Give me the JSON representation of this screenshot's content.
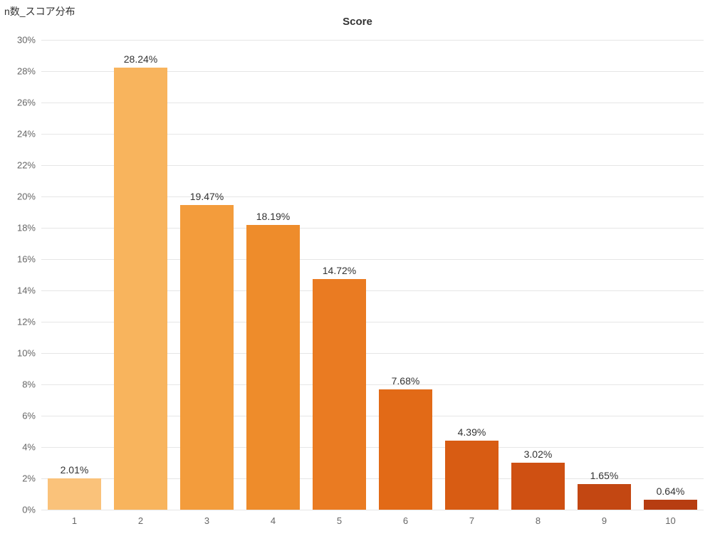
{
  "chart": {
    "type": "bar",
    "top_left_title": "n数_スコア分布",
    "center_title": "Score",
    "background_color": "#ffffff",
    "grid_color": "#e6e6e6",
    "axis_label_color": "#666666",
    "bar_label_color": "#333333",
    "title_fontsize": 14,
    "label_fontsize": 13,
    "barlabel_fontsize": 14,
    "ylim_max": 30,
    "ylim_min": 0,
    "ytick_step": 2,
    "bar_width_ratio": 0.8,
    "categories": [
      "1",
      "2",
      "3",
      "4",
      "5",
      "6",
      "7",
      "8",
      "9",
      "10"
    ],
    "values": [
      2.01,
      28.24,
      19.47,
      18.19,
      14.72,
      7.68,
      4.39,
      3.02,
      1.65,
      0.64
    ],
    "value_labels": [
      "2.01%",
      "28.24%",
      "19.47%",
      "18.19%",
      "14.72%",
      "7.68%",
      "4.39%",
      "3.02%",
      "1.65%",
      "0.64%"
    ],
    "bar_colors": [
      "#fac27a",
      "#f8b45d",
      "#f39c3c",
      "#ee8c2b",
      "#ea7b22",
      "#e26a17",
      "#d85c13",
      "#cf5012",
      "#c34712",
      "#b73d11"
    ]
  }
}
